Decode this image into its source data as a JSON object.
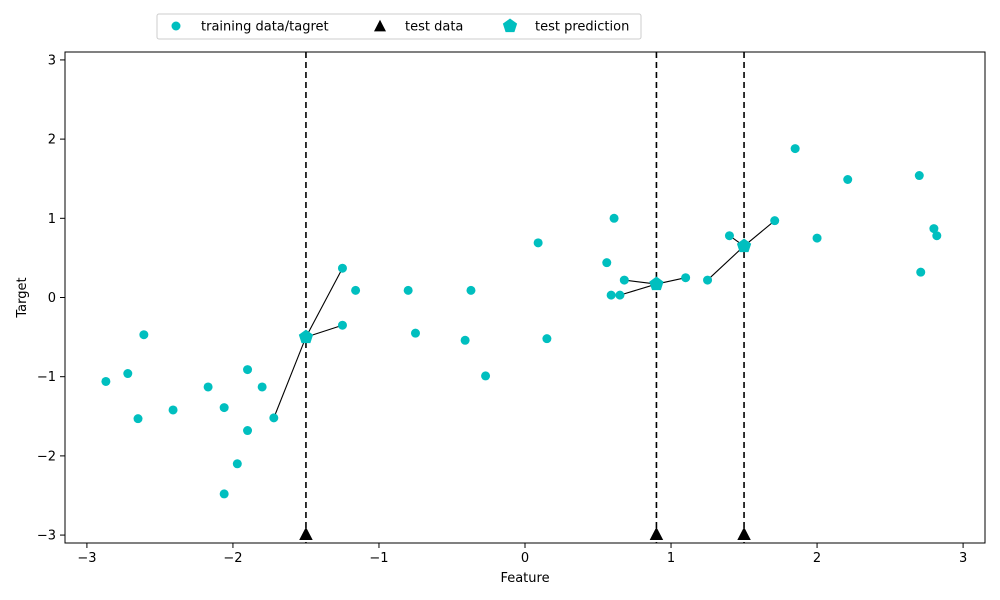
{
  "chart_data": {
    "type": "scatter",
    "title": "",
    "xlabel": "Feature",
    "ylabel": "Target",
    "xlim": [
      -3.15,
      3.15
    ],
    "ylim": [
      -3.1,
      3.1
    ],
    "xticks": [
      -3,
      -2,
      -1,
      0,
      1,
      2,
      3
    ],
    "xtick_labels": [
      "−3",
      "−2",
      "−1",
      "0",
      "1",
      "2",
      "3"
    ],
    "yticks": [
      -3,
      -2,
      -1,
      0,
      1,
      2,
      3
    ],
    "ytick_labels": [
      "−3",
      "−2",
      "−1",
      "0",
      "1",
      "2",
      "3"
    ],
    "grid": false,
    "legend_position": "top, above plot",
    "colors": {
      "training": "#00bfbf",
      "test": "#000000",
      "prediction": "#00bfbf",
      "line": "#000000"
    },
    "legend": [
      {
        "key": "training",
        "label": "training data/tagret",
        "marker": "circle"
      },
      {
        "key": "test",
        "label": "test data",
        "marker": "triangle"
      },
      {
        "key": "prediction",
        "label": "test prediction",
        "marker": "pentagon"
      }
    ],
    "series": [
      {
        "name": "training data/tagret",
        "x": [
          -2.87,
          -2.72,
          -2.65,
          -2.61,
          -2.41,
          -2.17,
          -2.06,
          -2.06,
          -1.97,
          -1.9,
          -1.9,
          -1.8,
          -1.72,
          -1.25,
          -1.25,
          -1.16,
          -0.8,
          -0.75,
          -0.41,
          -0.37,
          -0.27,
          0.09,
          0.15,
          0.56,
          0.59,
          0.61,
          0.65,
          0.68,
          1.1,
          1.25,
          1.4,
          1.71,
          1.85,
          2.0,
          2.21,
          2.7,
          2.71,
          2.8,
          2.82
        ],
        "y": [
          -1.06,
          -0.96,
          -1.53,
          -0.47,
          -1.42,
          -1.13,
          -1.39,
          -2.48,
          -2.1,
          -0.91,
          -1.68,
          -1.13,
          -1.52,
          0.37,
          -0.35,
          0.09,
          0.09,
          -0.45,
          -0.54,
          0.09,
          -0.99,
          0.69,
          -0.52,
          0.44,
          0.03,
          1.0,
          0.03,
          0.22,
          0.25,
          0.22,
          0.78,
          0.97,
          1.88,
          0.75,
          1.49,
          1.54,
          0.32,
          0.87,
          0.78
        ]
      },
      {
        "name": "test data",
        "x": [
          -1.5,
          0.9,
          1.5
        ],
        "y": [
          -3.0,
          -3.0,
          -3.0
        ]
      },
      {
        "name": "test prediction",
        "x": [
          -1.5,
          0.9,
          1.5
        ],
        "y": [
          -0.5,
          0.17,
          0.65
        ]
      }
    ],
    "vertical_lines_x": [
      -1.5,
      0.9,
      1.5
    ],
    "neighbor_links": [
      {
        "from": [
          -1.5,
          -0.5
        ],
        "to": [
          [
            -1.25,
            0.37
          ],
          [
            -1.25,
            -0.35
          ],
          [
            -1.72,
            -1.52
          ]
        ]
      },
      {
        "from": [
          0.9,
          0.17
        ],
        "to": [
          [
            0.68,
            0.22
          ],
          [
            1.1,
            0.25
          ],
          [
            0.65,
            0.03
          ]
        ]
      },
      {
        "from": [
          1.5,
          0.65
        ],
        "to": [
          [
            1.4,
            0.78
          ],
          [
            1.71,
            0.97
          ],
          [
            1.25,
            0.22
          ]
        ]
      }
    ]
  }
}
